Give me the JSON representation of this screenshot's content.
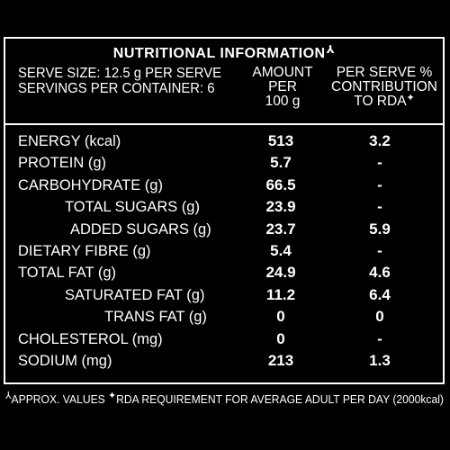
{
  "title": "NUTRITIONAL INFORMATION",
  "title_mark": "⅄",
  "serve_size": "SERVE SIZE: 12.5 g PER SERVE",
  "servings": "SERVINGS PER CONTAINER: 6",
  "col_amount": [
    "AMOUNT",
    "PER",
    "100 g"
  ],
  "col_rda": [
    "PER SERVE %",
    "CONTRIBUTION",
    "TO RDA"
  ],
  "rda_mark": "✦",
  "rows": [
    {
      "label": "ENERGY (kcal)",
      "amount": "513",
      "rda": "3.2",
      "indent": 0
    },
    {
      "label": "PROTEIN (g)",
      "amount": "5.7",
      "rda": "-",
      "indent": 0
    },
    {
      "label": "CARBOHYDRATE (g)",
      "amount": "66.5",
      "rda": "-",
      "indent": 0
    },
    {
      "label": "TOTAL SUGARS (g)",
      "amount": "23.9",
      "rda": "-",
      "indent": 1
    },
    {
      "label": "ADDED SUGARS (g)",
      "amount": "23.7",
      "rda": "5.9",
      "indent": 2
    },
    {
      "label": "DIETARY FIBRE (g)",
      "amount": "5.4",
      "rda": "-",
      "indent": 0
    },
    {
      "label": "TOTAL FAT (g)",
      "amount": "24.9",
      "rda": "4.6",
      "indent": 0
    },
    {
      "label": "SATURATED FAT (g)",
      "amount": "11.2",
      "rda": "6.4",
      "indent": 1
    },
    {
      "label": "TRANS FAT (g)",
      "amount": "0",
      "rda": "0",
      "indent": 3
    },
    {
      "label": "CHOLESTEROL (mg)",
      "amount": "0",
      "rda": "-",
      "indent": 0
    },
    {
      "label": "SODIUM  (mg)",
      "amount": "213",
      "rda": "1.3",
      "indent": 0
    }
  ],
  "footnote": "APPROX. VALUES",
  "footnote_mark": "⅄",
  "footnote_rda": "RDA REQUIREMENT FOR AVERAGE ADULT PER DAY (2000kcal)"
}
